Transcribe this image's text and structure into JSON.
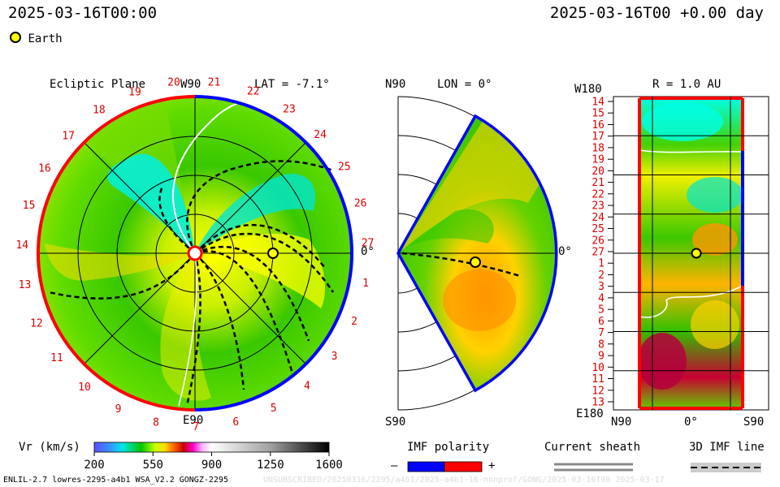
{
  "header": {
    "left_time": "2025-03-16T00:00",
    "right_time": "2025-03-16T00 +0.00 day"
  },
  "legend": {
    "earth_label": "Earth"
  },
  "panels": {
    "ecliptic": {
      "title": "Ecliptic Plane",
      "top_label": "W90",
      "bottom_label": "E90",
      "right_label": "0°",
      "lat_label": "LAT = -7.1°",
      "ticks": [
        "20",
        "21",
        "22",
        "23",
        "24",
        "25",
        "26",
        "27",
        "1",
        "2",
        "3",
        "4",
        "5",
        "6",
        "7",
        "8",
        "9",
        "10",
        "11",
        "12",
        "13",
        "14",
        "15",
        "16",
        "17",
        "18",
        "19"
      ]
    },
    "meridional": {
      "top_label": "N90",
      "lon_label": "LON = 0°",
      "right_label": "0°",
      "bottom_label": "S90"
    },
    "radial": {
      "top_left_label": "W180",
      "r_label": "R = 1.0 AU",
      "bottom_left_label": "E180",
      "x_left": "N90",
      "x_mid": "0°",
      "x_right": "S90",
      "y_ticks": [
        "14",
        "15",
        "16",
        "17",
        "18",
        "19",
        "20",
        "21",
        "22",
        "23",
        "24",
        "25",
        "26",
        "27",
        "1",
        "2",
        "3",
        "4",
        "5",
        "6",
        "7",
        "8",
        "9",
        "10",
        "11",
        "12",
        "13"
      ]
    }
  },
  "colorbar": {
    "label": "Vr (km/s)",
    "ticks": [
      "200",
      "550",
      "900",
      "1250",
      "1600"
    ],
    "min": 200,
    "max": 1600
  },
  "imf": {
    "label": "IMF polarity",
    "minus": "–",
    "plus": "+",
    "negative_color": "#0000ff",
    "positive_color": "#ff0000"
  },
  "current_sheath": {
    "label": "Current sheath"
  },
  "imf_line": {
    "label": "3D IMF line"
  },
  "footer": {
    "left": "ENLIL-2.7 lowres-2295-a4b1 WSA_V2.2 GONGZ-2295",
    "right": "UNSUBSCRIBED/20250316/2295/a4b1/2025-a4b1-16-nonprof/GONG/2025-03-16T00  2025-03-17"
  }
}
